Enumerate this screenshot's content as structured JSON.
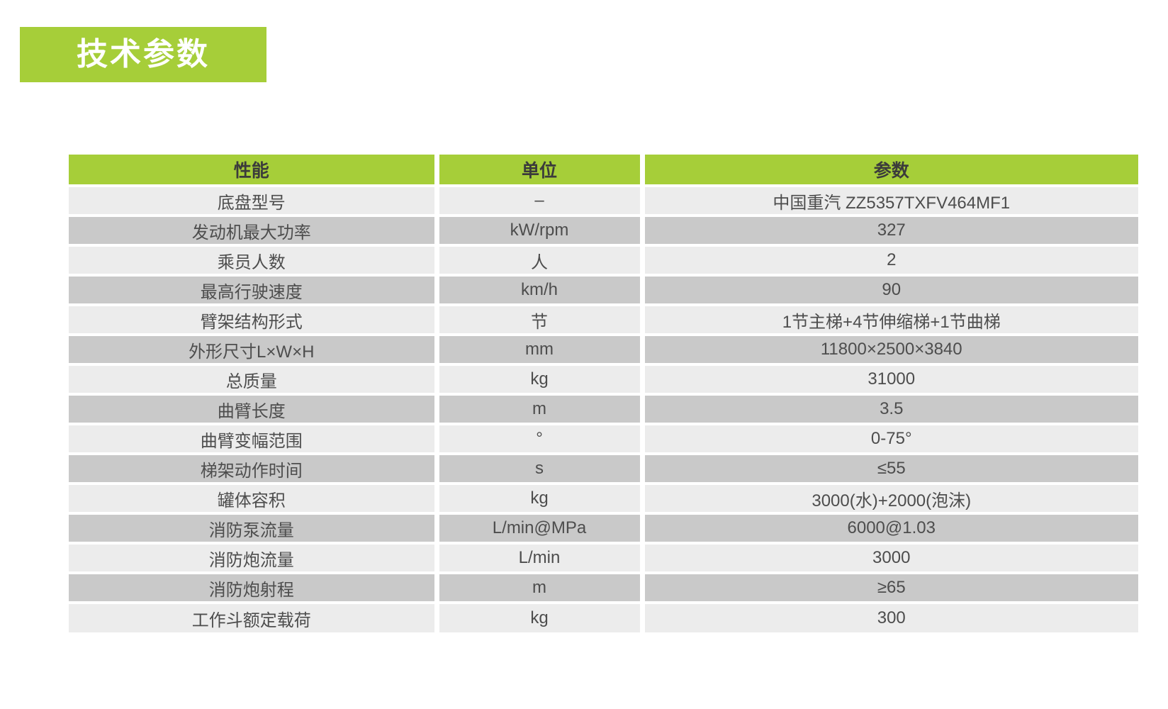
{
  "page": {
    "title": "技术参数"
  },
  "colors": {
    "accent_green": "#a6ce39",
    "row_light": "#ececec",
    "row_dark": "#c9c9c9",
    "header_text": "#3b3b3b",
    "cell_text": "#4d4d4d"
  },
  "table": {
    "headers": [
      "性能",
      "单位",
      "参数"
    ],
    "rows": [
      {
        "property": "底盘型号",
        "unit": "–",
        "value": "中国重汽 ZZ5357TXFV464MF1"
      },
      {
        "property": "发动机最大功率",
        "unit": "kW/rpm",
        "value": "327"
      },
      {
        "property": "乘员人数",
        "unit": "人",
        "value": "2"
      },
      {
        "property": "最高行驶速度",
        "unit": "km/h",
        "value": "90"
      },
      {
        "property": "臂架结构形式",
        "unit": "节",
        "value": "1节主梯+4节伸缩梯+1节曲梯"
      },
      {
        "property": "外形尺寸L×W×H",
        "unit": "mm",
        "value": "11800×2500×3840"
      },
      {
        "property": "总质量",
        "unit": "kg",
        "value": "31000"
      },
      {
        "property": "曲臂长度",
        "unit": "m",
        "value": "3.5"
      },
      {
        "property": "曲臂变幅范围",
        "unit": "°",
        "value": "0-75°"
      },
      {
        "property": "梯架动作时间",
        "unit": "s",
        "value": "≤55"
      },
      {
        "property": "罐体容积",
        "unit": "kg",
        "value": "3000(水)+2000(泡沫)"
      },
      {
        "property": "消防泵流量",
        "unit": "L/min@MPa",
        "value": "6000@1.03"
      },
      {
        "property": "消防炮流量",
        "unit": "L/min",
        "value": "3000"
      },
      {
        "property": "消防炮射程",
        "unit": "m",
        "value": "≥65"
      },
      {
        "property": "工作斗额定载荷",
        "unit": "kg",
        "value": "300"
      }
    ]
  }
}
